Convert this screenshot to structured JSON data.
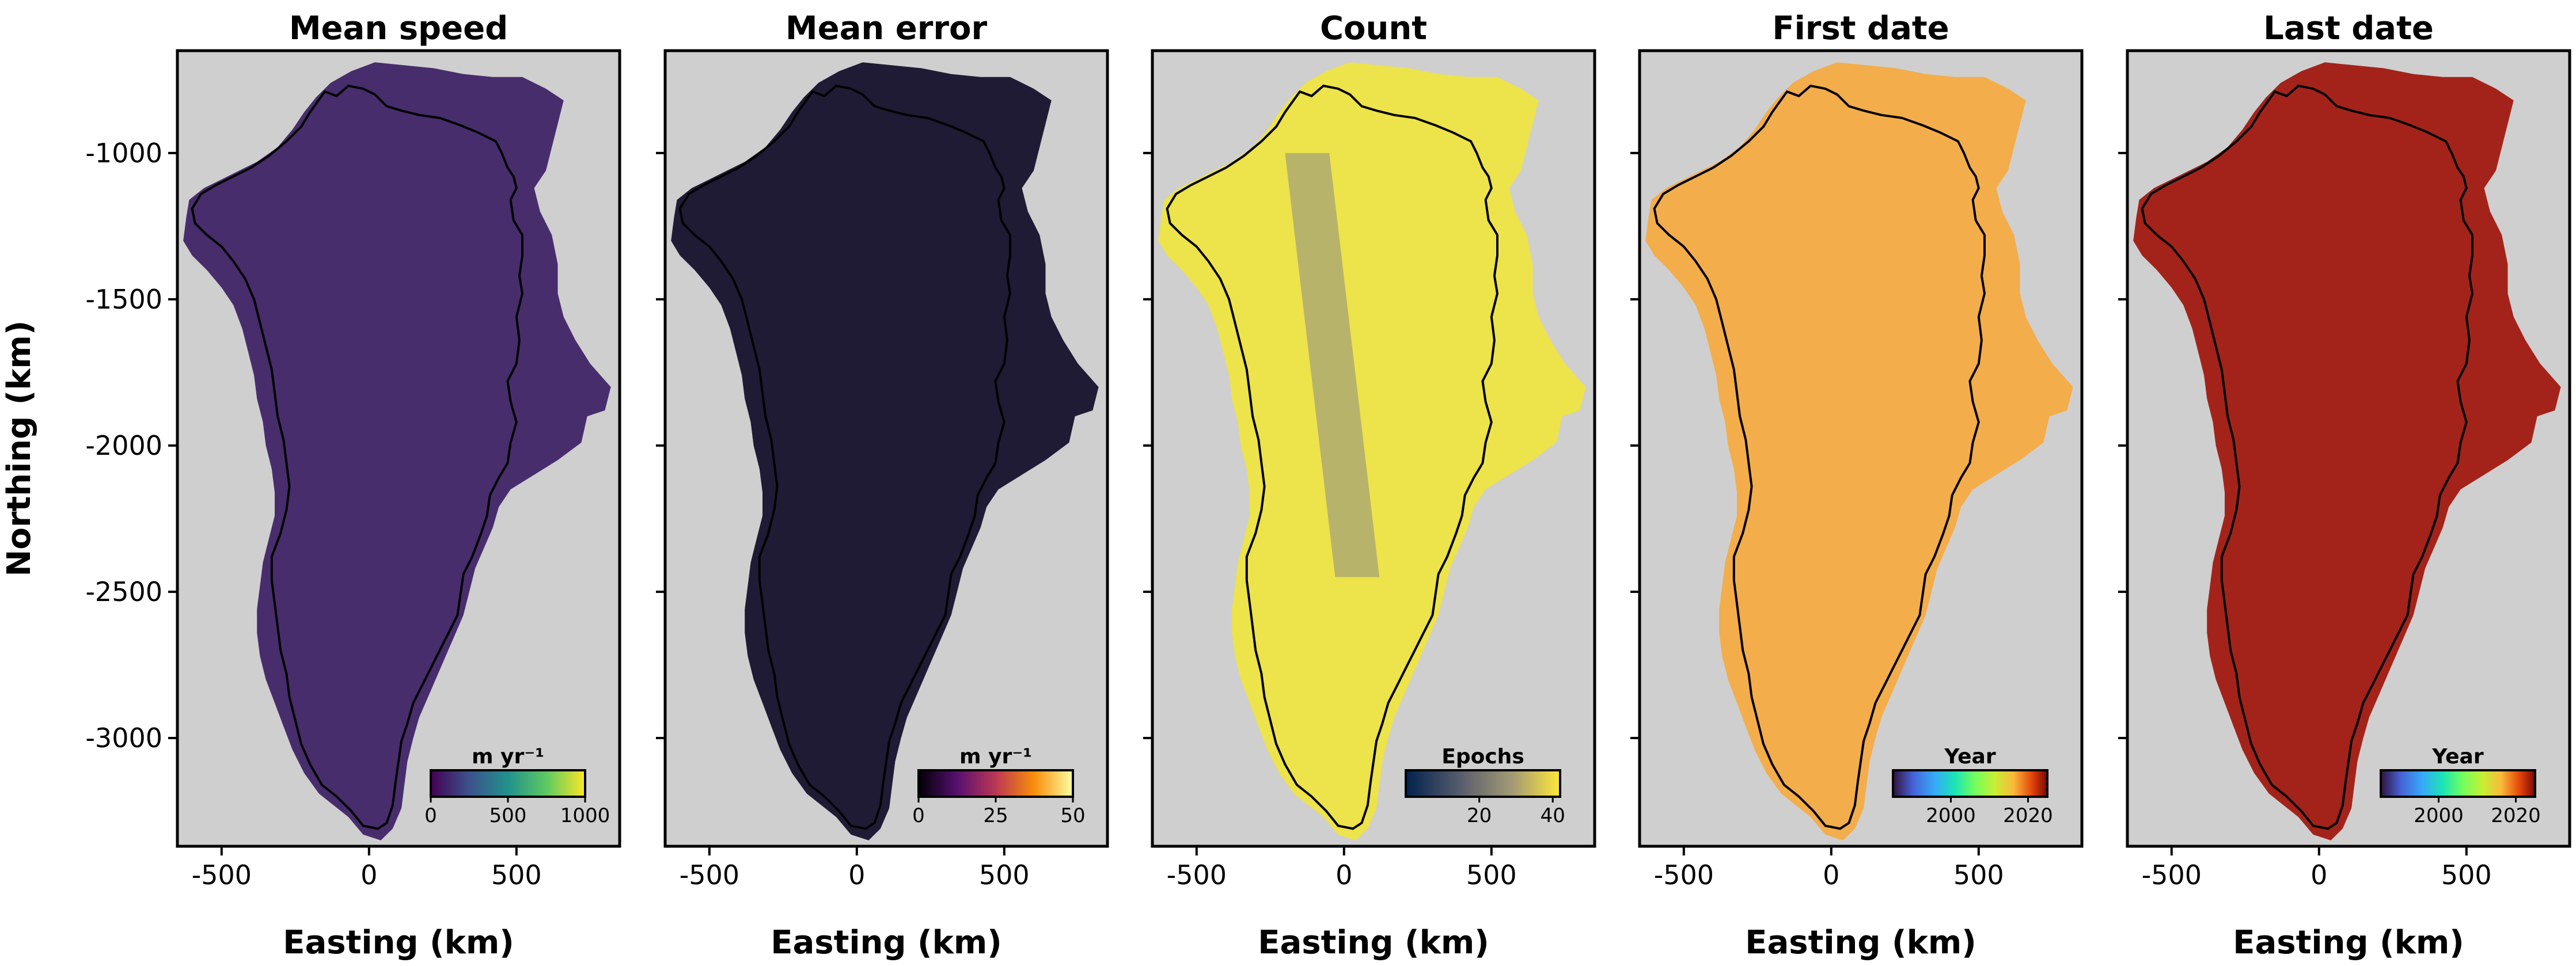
{
  "chart_data": [
    {
      "type": "heatmap",
      "title": "Mean speed",
      "xlabel": "Easting (km)",
      "ylabel": "Northing (km)",
      "xticks": [
        "-500",
        "0",
        "500"
      ],
      "yticks": [
        "-1000",
        "-1500",
        "-2000",
        "-2500",
        "-3000"
      ],
      "xlim": [
        -650,
        850
      ],
      "ylim": [
        -3370,
        -650
      ],
      "colormap": "viridis",
      "colorbar": {
        "label": "m yr⁻¹",
        "ticks": [
          "0",
          "500",
          "1000"
        ],
        "range": [
          0,
          1000
        ]
      }
    },
    {
      "type": "heatmap",
      "title": "Mean error",
      "xlabel": "Easting (km)",
      "xticks": [
        "-500",
        "0",
        "500"
      ],
      "xlim": [
        -650,
        850
      ],
      "ylim": [
        -3370,
        -650
      ],
      "colormap": "inferno",
      "colorbar": {
        "label": "m yr⁻¹",
        "ticks": [
          "0",
          "25",
          "50"
        ],
        "range": [
          0,
          50
        ]
      }
    },
    {
      "type": "heatmap",
      "title": "Count",
      "xlabel": "Easting (km)",
      "xticks": [
        "-500",
        "0",
        "500"
      ],
      "xlim": [
        -650,
        850
      ],
      "ylim": [
        -3370,
        -650
      ],
      "colormap": "cividis",
      "colorbar": {
        "label": "Epochs",
        "ticks": [
          "20",
          "40"
        ],
        "range": [
          0,
          42
        ]
      }
    },
    {
      "type": "heatmap",
      "title": "First date",
      "xlabel": "Easting (km)",
      "xticks": [
        "-500",
        "0",
        "500"
      ],
      "xlim": [
        -650,
        850
      ],
      "ylim": [
        -3370,
        -650
      ],
      "colormap": "turbo",
      "colorbar": {
        "label": "Year",
        "ticks": [
          "2000",
          "2020"
        ],
        "range": [
          1985,
          2025
        ]
      }
    },
    {
      "type": "heatmap",
      "title": "Last date",
      "xlabel": "Easting (km)",
      "xticks": [
        "-500",
        "0",
        "500"
      ],
      "xlim": [
        -650,
        850
      ],
      "ylim": [
        -3370,
        -650
      ],
      "colormap": "turbo",
      "colorbar": {
        "label": "Year",
        "ticks": [
          "2000",
          "2020"
        ],
        "range": [
          1985,
          2025
        ]
      }
    }
  ],
  "colors": {
    "background": "#cfcfcf",
    "outline": "#000000",
    "mean_speed_fill": "#482d6d",
    "mean_error_fill": "#1f1b35",
    "count_fill": "#ede34a",
    "first_date_fill": "#f3ad4b",
    "last_date_fill": "#a3231a"
  }
}
